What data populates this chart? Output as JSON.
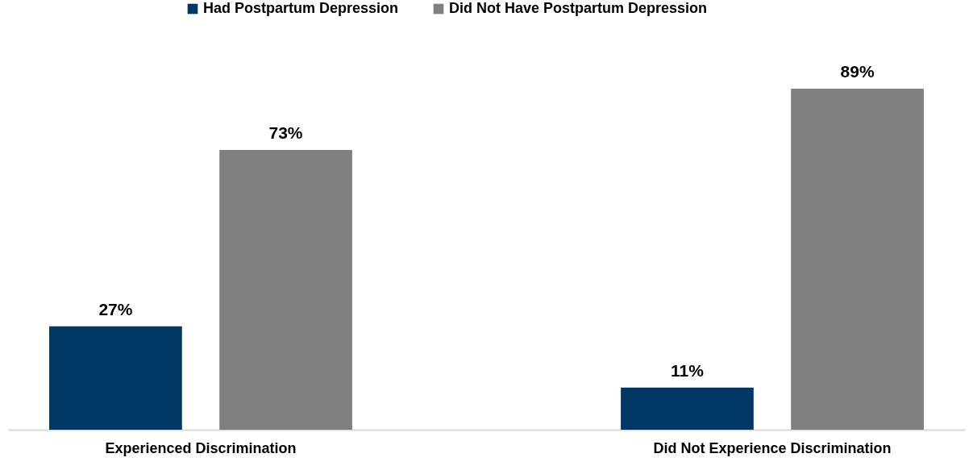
{
  "chart_data": {
    "type": "bar",
    "categories": [
      "Experienced Discrimination",
      "Did Not Experience Discrimination"
    ],
    "series": [
      {
        "name": "Had Postpartum Depression",
        "color": "#003764",
        "values": [
          27,
          11
        ],
        "value_labels": [
          "27%",
          "11%"
        ]
      },
      {
        "name": "Did Not Have Postpartum Depression",
        "color": "#7f7f7f",
        "values": [
          73,
          89
        ],
        "value_labels": [
          "73%",
          "89%"
        ]
      }
    ],
    "legend": "top",
    "grid": false
  }
}
